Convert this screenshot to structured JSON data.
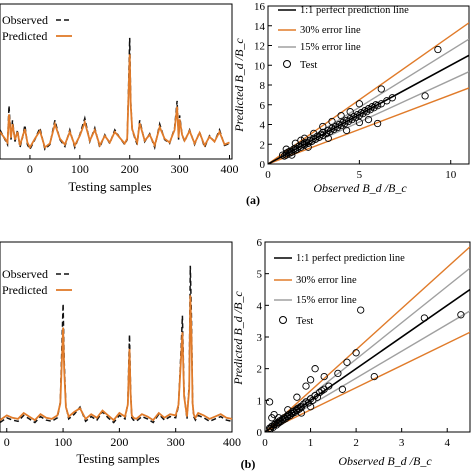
{
  "colors": {
    "observed": "#111111",
    "predicted": "#e07b2a",
    "perfect_line": "#000000",
    "error30_line": "#e07b2a",
    "error15_line": "#a0a0a0",
    "test_marker": "#000000"
  },
  "panel_labels": [
    "(a)",
    "(b)"
  ],
  "chart_data": [
    {
      "type": "line",
      "panel": "top-left",
      "xlabel": "Testing samples",
      "ylabel": "",
      "xticks": [
        "0",
        "100",
        "200",
        "300",
        "400"
      ],
      "xlim": [
        -60,
        405
      ],
      "ylim": [
        0,
        16
      ],
      "legend": [
        "Observed",
        "Predicted"
      ],
      "legend_position": "top-left",
      "series": [
        {
          "name": "Observed",
          "x": [
            -60,
            -50,
            -45,
            -42,
            -38,
            -35,
            -30,
            -25,
            -20,
            -15,
            -10,
            -5,
            0,
            10,
            20,
            30,
            40,
            50,
            60,
            70,
            80,
            90,
            100,
            110,
            120,
            130,
            140,
            150,
            160,
            170,
            180,
            190,
            195,
            198,
            200,
            202,
            205,
            210,
            215,
            220,
            230,
            240,
            250,
            260,
            270,
            280,
            290,
            295,
            298,
            300,
            305,
            310,
            320,
            330,
            340,
            350,
            360,
            370,
            380,
            390,
            400
          ],
          "y": [
            3,
            2,
            1.5,
            5.5,
            2,
            4,
            1.8,
            3,
            1.2,
            2.2,
            3.5,
            1.5,
            1,
            2,
            3.2,
            1,
            1.5,
            4,
            2,
            1.3,
            3,
            1.2,
            2.5,
            4.2,
            1.8,
            3.2,
            1.2,
            2.5,
            1.6,
            3,
            2.2,
            1.5,
            2,
            8,
            12.5,
            6,
            3,
            2.2,
            1.5,
            4,
            1.8,
            2.6,
            1.2,
            3.6,
            2,
            1.6,
            3.2,
            6,
            2,
            4.5,
            2.5,
            1.8,
            3,
            1.5,
            2.8,
            1.2,
            2.4,
            1.8,
            3,
            1.4,
            1.6
          ]
        },
        {
          "name": "Predicted",
          "x": [
            -60,
            -50,
            -45,
            -42,
            -38,
            -35,
            -30,
            -25,
            -20,
            -15,
            -10,
            -5,
            0,
            10,
            20,
            30,
            40,
            50,
            60,
            70,
            80,
            90,
            100,
            110,
            120,
            130,
            140,
            150,
            160,
            170,
            180,
            190,
            195,
            198,
            200,
            202,
            205,
            210,
            215,
            220,
            230,
            240,
            250,
            260,
            270,
            280,
            290,
            295,
            298,
            300,
            305,
            310,
            320,
            330,
            340,
            350,
            360,
            370,
            380,
            390,
            400
          ],
          "y": [
            2.8,
            2.1,
            1.7,
            4.6,
            2.2,
            3.6,
            2,
            2.8,
            1.4,
            2.3,
            3.1,
            1.7,
            1.2,
            2.1,
            2.9,
            1.2,
            1.6,
            3.6,
            2.1,
            1.5,
            2.8,
            1.4,
            2.4,
            3.8,
            1.9,
            3,
            1.4,
            2.4,
            1.7,
            2.8,
            2.2,
            1.6,
            2.1,
            7.2,
            10.8,
            5.6,
            3.1,
            2.3,
            1.7,
            3.7,
            1.9,
            2.5,
            1.4,
            3.3,
            2.1,
            1.7,
            3,
            5.4,
            2.2,
            4.1,
            2.5,
            1.9,
            2.9,
            1.6,
            2.7,
            1.4,
            2.3,
            1.8,
            2.8,
            1.5,
            1.7
          ]
        }
      ]
    },
    {
      "type": "scatter",
      "panel": "top-right",
      "xlabel": "Observed B_d /B_c",
      "ylabel": "Predicted B_d /B_c",
      "xticks": [
        "0",
        "5",
        "10"
      ],
      "yticks": [
        "0",
        "2",
        "4",
        "6",
        "8",
        "10",
        "12",
        "14",
        "16"
      ],
      "xlim": [
        0,
        11
      ],
      "ylim": [
        0,
        16
      ],
      "legend": [
        "1:1 perfect prediction line",
        "30% error line",
        "15% error line",
        "Test"
      ],
      "legend_position": "top-left",
      "lines": {
        "perfect_slope": 1,
        "error30_slopes": [
          1.3,
          0.7
        ],
        "error15_slopes": [
          1.15,
          0.85
        ]
      },
      "points": [
        [
          0.8,
          0.9
        ],
        [
          0.9,
          0.8
        ],
        [
          1.0,
          1.1
        ],
        [
          1.0,
          0.9
        ],
        [
          1.1,
          1.2
        ],
        [
          1.2,
          1.1
        ],
        [
          1.2,
          1.3
        ],
        [
          1.3,
          1.2
        ],
        [
          1.4,
          1.5
        ],
        [
          1.5,
          1.4
        ],
        [
          1.5,
          1.6
        ],
        [
          1.6,
          1.5
        ],
        [
          1.7,
          1.8
        ],
        [
          1.8,
          1.7
        ],
        [
          1.9,
          2.0
        ],
        [
          2.0,
          1.9
        ],
        [
          2.0,
          2.1
        ],
        [
          2.1,
          2.2
        ],
        [
          2.2,
          2.1
        ],
        [
          2.3,
          2.4
        ],
        [
          2.4,
          2.3
        ],
        [
          2.5,
          2.6
        ],
        [
          2.6,
          2.5
        ],
        [
          2.7,
          2.8
        ],
        [
          2.8,
          2.7
        ],
        [
          2.9,
          3.0
        ],
        [
          3.0,
          2.9
        ],
        [
          3.0,
          3.2
        ],
        [
          3.2,
          3.1
        ],
        [
          3.3,
          3.4
        ],
        [
          3.4,
          3.3
        ],
        [
          3.5,
          3.6
        ],
        [
          3.6,
          3.5
        ],
        [
          3.7,
          3.8
        ],
        [
          3.8,
          3.7
        ],
        [
          3.9,
          4.0
        ],
        [
          4.0,
          3.9
        ],
        [
          4.1,
          4.2
        ],
        [
          4.2,
          4.1
        ],
        [
          4.3,
          4.4
        ],
        [
          4.4,
          4.3
        ],
        [
          4.5,
          4.6
        ],
        [
          4.6,
          4.5
        ],
        [
          4.7,
          4.8
        ],
        [
          4.8,
          4.7
        ],
        [
          4.9,
          5.0
        ],
        [
          5.0,
          4.9
        ],
        [
          5.1,
          5.2
        ],
        [
          5.2,
          5.1
        ],
        [
          5.3,
          5.4
        ],
        [
          5.4,
          5.3
        ],
        [
          5.5,
          5.6
        ],
        [
          5.6,
          5.5
        ],
        [
          5.7,
          5.8
        ],
        [
          5.8,
          5.7
        ],
        [
          5.9,
          6.0
        ],
        [
          6.0,
          5.9
        ],
        [
          6.2,
          6.1
        ],
        [
          6.5,
          6.4
        ],
        [
          6.8,
          6.7
        ],
        [
          1.0,
          1.5
        ],
        [
          1.5,
          2.1
        ],
        [
          2.0,
          2.6
        ],
        [
          3.0,
          3.8
        ],
        [
          4.0,
          4.9
        ],
        [
          5.0,
          6.1
        ],
        [
          1.3,
          0.9
        ],
        [
          2.2,
          1.7
        ],
        [
          3.3,
          2.6
        ],
        [
          4.3,
          3.4
        ],
        [
          5.5,
          4.5
        ],
        [
          6.2,
          7.6
        ],
        [
          6.0,
          4.1
        ],
        [
          8.6,
          6.9
        ],
        [
          9.3,
          11.6
        ],
        [
          5.0,
          4.2
        ],
        [
          4.5,
          5.3
        ],
        [
          3.5,
          4.3
        ],
        [
          2.5,
          3.1
        ],
        [
          1.8,
          2.4
        ]
      ]
    },
    {
      "type": "line",
      "panel": "bottom-left",
      "xlabel": "Testing samples",
      "ylabel": "",
      "xticks": [
        "0",
        "100",
        "200",
        "300",
        "400"
      ],
      "xlim": [
        -12,
        400
      ],
      "ylim": [
        0,
        16
      ],
      "legend": [
        "Observed",
        "Predicted"
      ],
      "legend_position": "top-left",
      "series": [
        {
          "name": "Observed",
          "x": [
            -12,
            0,
            10,
            20,
            30,
            40,
            50,
            60,
            70,
            80,
            90,
            95,
            100,
            102,
            105,
            110,
            120,
            130,
            140,
            150,
            160,
            170,
            180,
            190,
            200,
            210,
            215,
            218,
            220,
            222,
            225,
            230,
            240,
            250,
            260,
            270,
            280,
            290,
            300,
            305,
            310,
            312,
            315,
            320,
            324,
            326,
            328,
            330,
            332,
            335,
            340,
            350,
            360,
            370,
            380,
            390,
            400
          ],
          "y": [
            0.8,
            1.2,
            1.0,
            0.9,
            1.4,
            1.1,
            0.8,
            1.3,
            1.0,
            0.9,
            1.2,
            2.5,
            10.8,
            6,
            2.2,
            1.1,
            1.5,
            2.1,
            0.9,
            1.3,
            1.0,
            1.7,
            1.2,
            0.8,
            1.4,
            1.1,
            2.4,
            8.2,
            3.5,
            1.2,
            1.0,
            0.9,
            1.3,
            1.1,
            0.8,
            1.5,
            1.0,
            1.3,
            1.2,
            2.2,
            7.4,
            9.8,
            3.2,
            1.1,
            4.0,
            14,
            9.5,
            2.5,
            1.3,
            1.0,
            1.4,
            1.2,
            0.9,
            1.1,
            1.3,
            1.0,
            0.9
          ]
        },
        {
          "name": "Predicted",
          "x": [
            -12,
            0,
            10,
            20,
            30,
            40,
            50,
            60,
            70,
            80,
            90,
            95,
            100,
            102,
            105,
            110,
            120,
            130,
            140,
            150,
            160,
            170,
            180,
            190,
            200,
            210,
            215,
            218,
            220,
            222,
            225,
            230,
            240,
            250,
            260,
            270,
            280,
            290,
            300,
            305,
            310,
            312,
            315,
            320,
            324,
            326,
            328,
            330,
            332,
            335,
            340,
            350,
            360,
            370,
            380,
            390,
            400
          ],
          "y": [
            1.0,
            1.4,
            1.2,
            1.1,
            1.6,
            1.3,
            1.0,
            1.5,
            1.2,
            1.1,
            1.4,
            2.4,
            8.8,
            5.2,
            2.1,
            1.3,
            1.7,
            2.0,
            1.1,
            1.5,
            1.2,
            1.8,
            1.4,
            1.0,
            1.6,
            1.3,
            2.3,
            7.0,
            3.2,
            1.4,
            1.2,
            1.1,
            1.5,
            1.3,
            1.0,
            1.6,
            1.2,
            1.5,
            1.4,
            2.3,
            6.6,
            8.4,
            3.0,
            1.3,
            3.6,
            11.5,
            8.0,
            2.4,
            1.5,
            1.2,
            1.6,
            1.4,
            1.1,
            1.3,
            1.5,
            1.2,
            1.1
          ]
        }
      ]
    },
    {
      "type": "scatter",
      "panel": "bottom-right",
      "xlabel": "Observed B_d /B_c",
      "ylabel": "Predicted B_d /B_c",
      "xticks": [
        "0",
        "1",
        "2",
        "3",
        "4"
      ],
      "yticks": [
        "0",
        "1",
        "2",
        "3",
        "4",
        "5",
        "6"
      ],
      "xlim": [
        0,
        4.5
      ],
      "ylim": [
        0,
        6
      ],
      "legend": [
        "1:1 perfect prediction line",
        "30% error line",
        "15% error line",
        "Test"
      ],
      "legend_position": "top-left",
      "lines": {
        "perfect_slope": 1,
        "error30_slopes": [
          1.3,
          0.7
        ],
        "error15_slopes": [
          1.15,
          0.85
        ]
      },
      "points": [
        [
          0.1,
          0.12
        ],
        [
          0.12,
          0.1
        ],
        [
          0.15,
          0.18
        ],
        [
          0.18,
          0.15
        ],
        [
          0.2,
          0.22
        ],
        [
          0.22,
          0.25
        ],
        [
          0.25,
          0.22
        ],
        [
          0.28,
          0.3
        ],
        [
          0.3,
          0.28
        ],
        [
          0.32,
          0.35
        ],
        [
          0.35,
          0.33
        ],
        [
          0.38,
          0.4
        ],
        [
          0.4,
          0.38
        ],
        [
          0.42,
          0.45
        ],
        [
          0.45,
          0.42
        ],
        [
          0.48,
          0.5
        ],
        [
          0.5,
          0.48
        ],
        [
          0.52,
          0.55
        ],
        [
          0.55,
          0.52
        ],
        [
          0.58,
          0.6
        ],
        [
          0.6,
          0.58
        ],
        [
          0.62,
          0.65
        ],
        [
          0.65,
          0.62
        ],
        [
          0.68,
          0.7
        ],
        [
          0.7,
          0.68
        ],
        [
          0.72,
          0.75
        ],
        [
          0.75,
          0.72
        ],
        [
          0.78,
          0.8
        ],
        [
          0.8,
          0.78
        ],
        [
          0.85,
          0.88
        ],
        [
          0.9,
          0.95
        ],
        [
          0.95,
          0.92
        ],
        [
          1.0,
          1.05
        ],
        [
          1.05,
          1.0
        ],
        [
          1.1,
          1.15
        ],
        [
          1.15,
          1.1
        ],
        [
          1.2,
          1.25
        ],
        [
          1.25,
          1.3
        ],
        [
          1.3,
          1.35
        ],
        [
          1.4,
          1.45
        ],
        [
          0.15,
          0.45
        ],
        [
          0.2,
          0.55
        ],
        [
          0.1,
          0.95
        ],
        [
          0.3,
          0.45
        ],
        [
          0.5,
          0.7
        ],
        [
          0.7,
          1.1
        ],
        [
          0.9,
          1.45
        ],
        [
          1.0,
          1.65
        ],
        [
          1.1,
          2.0
        ],
        [
          1.3,
          1.75
        ],
        [
          1.6,
          1.85
        ],
        [
          1.8,
          2.2
        ],
        [
          2.0,
          2.5
        ],
        [
          1.7,
          1.35
        ],
        [
          2.1,
          3.85
        ],
        [
          2.4,
          1.75
        ],
        [
          3.5,
          3.6
        ],
        [
          4.3,
          3.7
        ],
        [
          0.8,
          0.6
        ],
        [
          1.0,
          0.8
        ]
      ]
    }
  ]
}
